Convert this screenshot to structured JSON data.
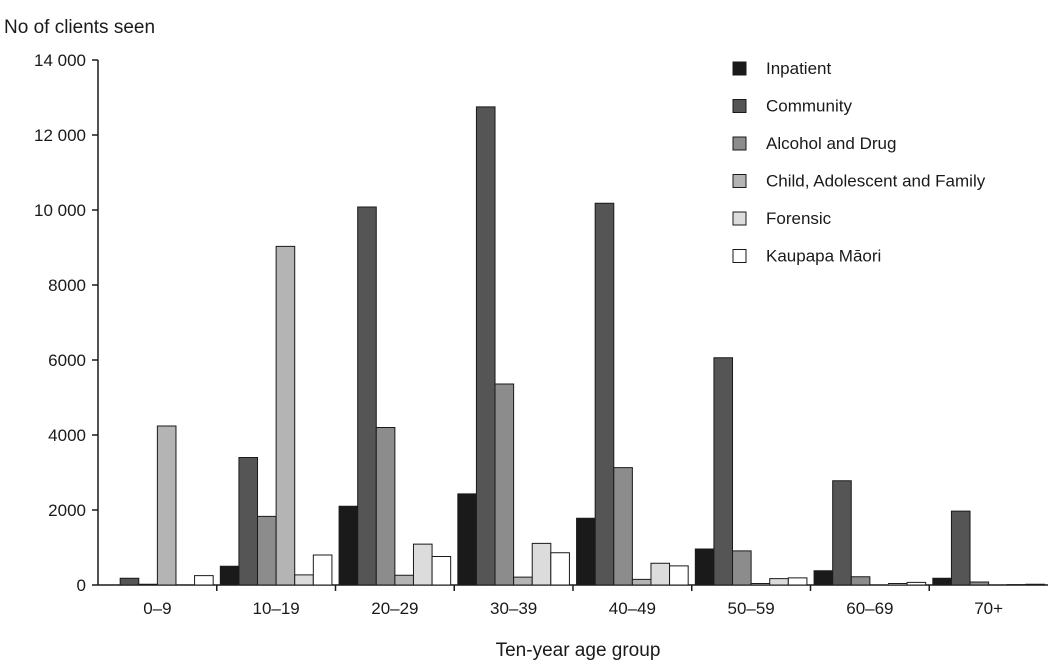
{
  "chart_data": {
    "type": "bar",
    "title": "",
    "xlabel": "Ten-year age group",
    "ylabel": "No of clients seen",
    "ylim": [
      0,
      14000
    ],
    "yticks": [
      0,
      2000,
      4000,
      6000,
      8000,
      10000,
      12000,
      14000
    ],
    "ytick_labels": [
      "0",
      "2000",
      "4000",
      "6000",
      "8000",
      "10 000",
      "12 000",
      "14 000"
    ],
    "categories": [
      "0–9",
      "10–19",
      "20–29",
      "30–39",
      "40–49",
      "50–59",
      "60–69",
      "70+"
    ],
    "grid": false,
    "legend_position": "top-right",
    "series": [
      {
        "name": "Inpatient",
        "color": "#1a1a1a",
        "values": [
          0,
          500,
          2100,
          2430,
          1780,
          960,
          380,
          180
        ]
      },
      {
        "name": "Community",
        "color": "#555555",
        "values": [
          180,
          3400,
          10080,
          12750,
          10180,
          6060,
          2780,
          1970
        ]
      },
      {
        "name": "Alcohol and Drug",
        "color": "#8c8c8c",
        "values": [
          20,
          1830,
          4200,
          5360,
          3130,
          910,
          220,
          80
        ]
      },
      {
        "name": "Child, Adolescent and Family",
        "color": "#b4b4b4",
        "values": [
          4240,
          9030,
          260,
          210,
          150,
          40,
          0,
          0
        ]
      },
      {
        "name": "Forensic",
        "color": "#dcdcdc",
        "values": [
          0,
          270,
          1090,
          1110,
          580,
          170,
          40,
          10
        ]
      },
      {
        "name": "Kaupapa Māori",
        "color": "#ffffff",
        "values": [
          250,
          800,
          760,
          860,
          510,
          190,
          70,
          20
        ]
      }
    ]
  }
}
